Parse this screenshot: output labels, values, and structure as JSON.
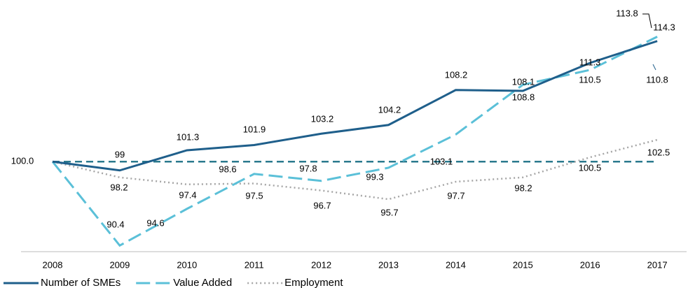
{
  "chart_data": {
    "type": "line",
    "categories": [
      "2008",
      "2009",
      "2010",
      "2011",
      "2012",
      "2013",
      "2014",
      "2015",
      "2016",
      "2017"
    ],
    "series": [
      {
        "name": "Number of SMEs",
        "color": "#1f5f8b",
        "style": "solid",
        "values": [
          100,
          99,
          101.3,
          101.9,
          103.2,
          104.2,
          108.2,
          108.1,
          111.3,
          113.8
        ],
        "value_labels": [
          "100.0",
          "99",
          "101.3",
          "101.9",
          "103.2",
          "104.2",
          "108.2",
          "108.1",
          "111.3",
          "113.8"
        ]
      },
      {
        "name": "Value Added",
        "color": "#5bc0d8",
        "style": "dashed",
        "values": [
          100,
          90.4,
          94.6,
          98.6,
          97.8,
          99.3,
          103.1,
          108.8,
          110.5,
          114.3
        ],
        "value_labels": [
          null,
          "90.4",
          "94.6",
          "98.6",
          "97.8",
          "99.3",
          "103.1",
          "108.8",
          "110.5",
          "114.3"
        ]
      },
      {
        "name": "Employment",
        "color": "#a6a6a6",
        "style": "dotted",
        "values": [
          100,
          98.2,
          97.4,
          97.5,
          96.7,
          95.7,
          97.7,
          98.2,
          100.5,
          102.5
        ],
        "value_labels": [
          null,
          "98.2",
          "97.4",
          "97.5",
          "96.7",
          "95.7",
          "97.7",
          "98.2",
          "100.5",
          "102.5"
        ]
      }
    ],
    "reference_line": {
      "value": 100,
      "color": "#2b7a8e"
    },
    "annotations": [
      "110.8"
    ],
    "ylim": [
      89.7,
      117.7
    ]
  }
}
